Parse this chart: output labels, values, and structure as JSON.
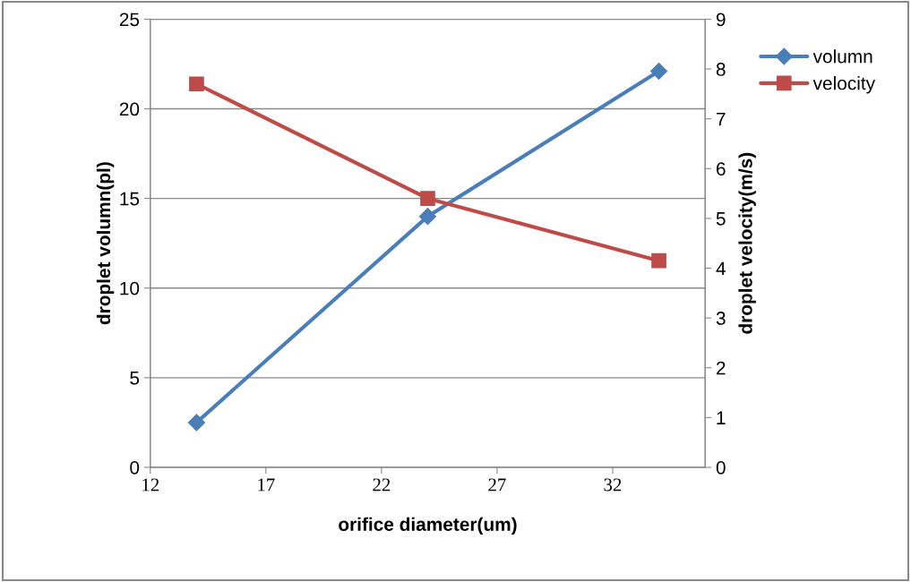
{
  "chart_data": {
    "type": "line",
    "xlabel": "orifice diameter(um)",
    "ylabel": "droplet volumn(pl)",
    "y2label": "droplet velocity(m/s)",
    "x": [
      14,
      24,
      34
    ],
    "series": [
      {
        "name": "volumn",
        "color": "#4a7ebb",
        "values": [
          2.5,
          14.0,
          22.1
        ],
        "marker": "diamond"
      },
      {
        "name": "velocity",
        "color": "#be4b48",
        "values": [
          7.7,
          5.4,
          4.15
        ],
        "marker": "square",
        "axis": "y2"
      }
    ],
    "xlim": [
      12,
      36
    ],
    "xticks": [
      12,
      17,
      22,
      27,
      32
    ],
    "ylim": [
      0,
      25
    ],
    "yticks": [
      0,
      5,
      10,
      15,
      20,
      25
    ],
    "y2lim": [
      0,
      9
    ],
    "y2ticks": [
      0,
      1,
      2,
      3,
      4,
      5,
      6,
      7,
      8,
      9
    ],
    "grid": "y",
    "legend": "right",
    "line_style": "solid"
  }
}
